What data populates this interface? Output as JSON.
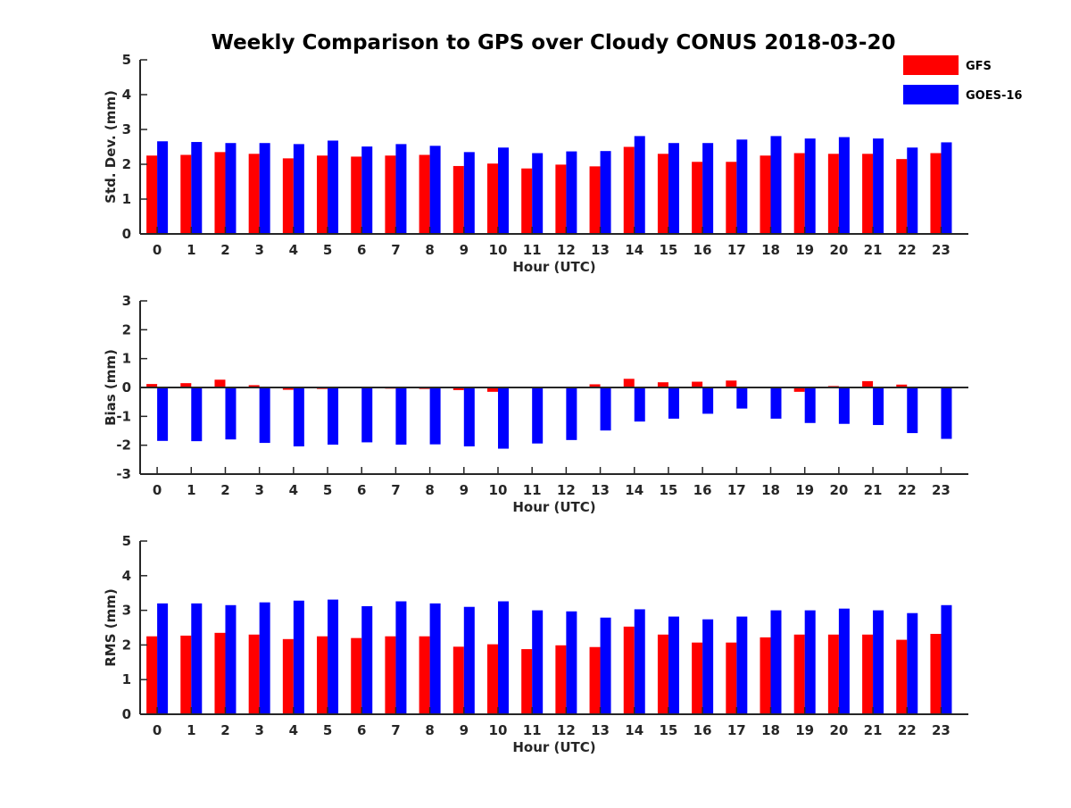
{
  "title": "Weekly Comparison to GPS over Cloudy CONUS 2018-03-20",
  "legend": {
    "placement": "top-right",
    "items": [
      {
        "label": "GFS",
        "color": "#ff0000"
      },
      {
        "label": "GOES-16",
        "color": "#0000ff"
      }
    ]
  },
  "chart_data": [
    {
      "type": "bar",
      "xlabel": "Hour (UTC)",
      "ylabel": "Std. Dev. (mm)",
      "ylim": [
        0,
        5
      ],
      "yticks": [
        0,
        1,
        2,
        3,
        4,
        5
      ],
      "categories": [
        "0",
        "1",
        "2",
        "3",
        "4",
        "5",
        "6",
        "7",
        "8",
        "9",
        "10",
        "11",
        "12",
        "13",
        "14",
        "15",
        "16",
        "17",
        "18",
        "19",
        "20",
        "21",
        "22",
        "23"
      ],
      "series": [
        {
          "name": "GFS",
          "color": "#ff0000",
          "values": [
            2.25,
            2.27,
            2.35,
            2.3,
            2.17,
            2.25,
            2.22,
            2.25,
            2.27,
            1.95,
            2.02,
            1.88,
            1.99,
            1.94,
            2.5,
            2.3,
            2.07,
            2.07,
            2.25,
            2.32,
            2.3,
            2.3,
            2.15,
            2.32
          ]
        },
        {
          "name": "GOES-16",
          "color": "#0000ff",
          "values": [
            2.66,
            2.64,
            2.61,
            2.61,
            2.58,
            2.68,
            2.51,
            2.58,
            2.53,
            2.35,
            2.48,
            2.32,
            2.37,
            2.38,
            2.81,
            2.61,
            2.61,
            2.71,
            2.81,
            2.74,
            2.78,
            2.74,
            2.48,
            2.63
          ]
        }
      ]
    },
    {
      "type": "bar",
      "xlabel": "Hour (UTC)",
      "ylabel": "Bias (mm)",
      "ylim": [
        -3,
        3
      ],
      "yticks": [
        -3,
        -2,
        -1,
        0,
        1,
        2,
        3
      ],
      "categories": [
        "0",
        "1",
        "2",
        "3",
        "4",
        "5",
        "6",
        "7",
        "8",
        "9",
        "10",
        "11",
        "12",
        "13",
        "14",
        "15",
        "16",
        "17",
        "18",
        "19",
        "20",
        "21",
        "22",
        "23"
      ],
      "series": [
        {
          "name": "GFS",
          "color": "#ff0000",
          "values": [
            0.12,
            0.15,
            0.27,
            0.08,
            -0.08,
            -0.05,
            0.03,
            -0.04,
            -0.05,
            -0.09,
            -0.15,
            -0.03,
            0.02,
            0.11,
            0.3,
            0.18,
            0.2,
            0.24,
            -0.03,
            -0.15,
            0.05,
            0.22,
            0.1,
            -0.02
          ]
        },
        {
          "name": "GOES-16",
          "color": "#0000ff",
          "values": [
            -1.85,
            -1.86,
            -1.8,
            -1.92,
            -2.04,
            -1.98,
            -1.9,
            -1.98,
            -1.97,
            -2.04,
            -2.12,
            -1.94,
            -1.82,
            -1.49,
            -1.18,
            -1.08,
            -0.91,
            -0.73,
            -1.08,
            -1.23,
            -1.26,
            -1.3,
            -1.58,
            -1.78
          ]
        }
      ]
    },
    {
      "type": "bar",
      "xlabel": "Hour (UTC)",
      "ylabel": "RMS (mm)",
      "ylim": [
        0,
        5
      ],
      "yticks": [
        0,
        1,
        2,
        3,
        4,
        5
      ],
      "categories": [
        "0",
        "1",
        "2",
        "3",
        "4",
        "5",
        "6",
        "7",
        "8",
        "9",
        "10",
        "11",
        "12",
        "13",
        "14",
        "15",
        "16",
        "17",
        "18",
        "19",
        "20",
        "21",
        "22",
        "23"
      ],
      "series": [
        {
          "name": "GFS",
          "color": "#ff0000",
          "values": [
            2.25,
            2.27,
            2.35,
            2.3,
            2.17,
            2.25,
            2.2,
            2.25,
            2.25,
            1.95,
            2.02,
            1.88,
            1.99,
            1.94,
            2.53,
            2.3,
            2.07,
            2.07,
            2.22,
            2.3,
            2.3,
            2.3,
            2.15,
            2.32
          ]
        },
        {
          "name": "GOES-16",
          "color": "#0000ff",
          "values": [
            3.2,
            3.2,
            3.15,
            3.23,
            3.28,
            3.31,
            3.12,
            3.26,
            3.2,
            3.1,
            3.26,
            3.0,
            2.97,
            2.79,
            3.03,
            2.82,
            2.74,
            2.82,
            3.0,
            3.0,
            3.05,
            3.0,
            2.92,
            3.15
          ]
        }
      ]
    }
  ]
}
